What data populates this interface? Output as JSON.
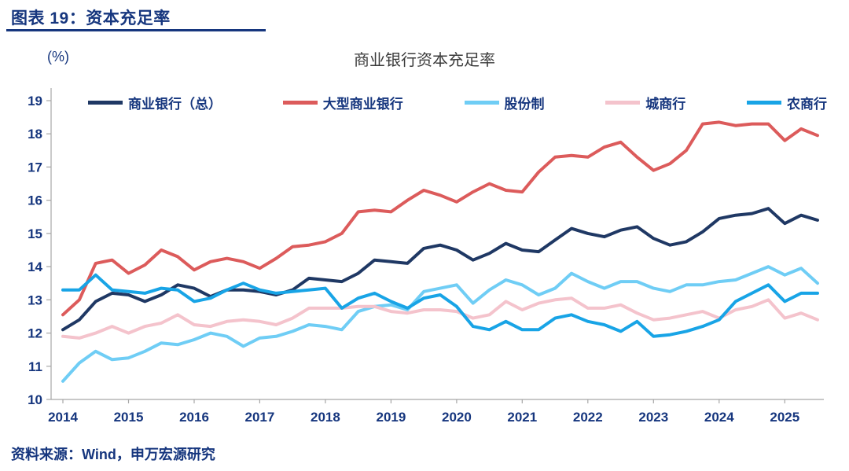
{
  "figure": {
    "header": "图表 19：资本充足率",
    "source": "资料来源：Wind，申万宏源研究"
  },
  "colors": {
    "accent": "#16367E",
    "axis": "#A6A6A6",
    "title_text": "#3A3A3A"
  },
  "chart_data": {
    "type": "line",
    "title": "商业银行资本充足率",
    "ylabel": "(%)",
    "xlabel": "",
    "ylim": [
      10,
      19
    ],
    "grid": false,
    "legend_position": "top",
    "y_ticks": [
      10,
      11,
      12,
      13,
      14,
      15,
      16,
      17,
      18,
      19
    ],
    "x_tick_labels": [
      "2014",
      "2015",
      "2016",
      "2017",
      "2018",
      "2019",
      "2020",
      "2021",
      "2022",
      "2023",
      "2024",
      "2025"
    ],
    "x_tick_every": 4,
    "x_note": "quarterly points from 2014Q1 to 2025Q3",
    "series": [
      {
        "name": "商业银行（总）",
        "color": "#1F3864",
        "values": [
          12.1,
          12.4,
          12.95,
          13.2,
          13.15,
          12.95,
          13.15,
          13.45,
          13.35,
          13.1,
          13.3,
          13.3,
          13.25,
          13.15,
          13.3,
          13.65,
          13.6,
          13.55,
          13.8,
          14.2,
          14.15,
          14.1,
          14.55,
          14.65,
          14.5,
          14.2,
          14.4,
          14.7,
          14.5,
          14.45,
          14.8,
          15.15,
          15.0,
          14.9,
          15.1,
          15.2,
          14.85,
          14.65,
          14.75,
          15.05,
          15.45,
          15.55,
          15.6,
          15.75,
          15.3,
          15.55,
          15.4
        ]
      },
      {
        "name": "大型商业银行",
        "color": "#DC5B5B",
        "values": [
          12.55,
          13.0,
          14.1,
          14.2,
          13.8,
          14.05,
          14.5,
          14.3,
          13.9,
          14.15,
          14.25,
          14.15,
          13.95,
          14.25,
          14.6,
          14.65,
          14.75,
          15.0,
          15.65,
          15.7,
          15.65,
          16.0,
          16.3,
          16.15,
          15.95,
          16.25,
          16.5,
          16.3,
          16.25,
          16.85,
          17.3,
          17.35,
          17.3,
          17.6,
          17.75,
          17.3,
          16.9,
          17.1,
          17.5,
          18.3,
          18.35,
          18.25,
          18.3,
          18.3,
          17.8,
          18.15,
          17.95
        ]
      },
      {
        "name": "股份制",
        "color": "#6FCDF5",
        "values": [
          10.55,
          11.1,
          11.45,
          11.2,
          11.25,
          11.45,
          11.7,
          11.65,
          11.8,
          12.0,
          11.9,
          11.6,
          11.85,
          11.9,
          12.05,
          12.25,
          12.2,
          12.1,
          12.65,
          12.8,
          12.85,
          12.7,
          13.25,
          13.35,
          13.45,
          12.9,
          13.3,
          13.6,
          13.45,
          13.15,
          13.35,
          13.8,
          13.55,
          13.35,
          13.55,
          13.55,
          13.35,
          13.25,
          13.45,
          13.45,
          13.55,
          13.6,
          13.8,
          14.0,
          13.75,
          13.95,
          13.5
        ]
      },
      {
        "name": "城商行",
        "color": "#F4C3CC",
        "values": [
          11.9,
          11.85,
          12.0,
          12.2,
          12.0,
          12.2,
          12.3,
          12.55,
          12.25,
          12.2,
          12.35,
          12.4,
          12.35,
          12.25,
          12.45,
          12.75,
          12.75,
          12.75,
          12.8,
          12.8,
          12.65,
          12.6,
          12.7,
          12.7,
          12.65,
          12.45,
          12.55,
          12.95,
          12.7,
          12.9,
          13.0,
          13.05,
          12.75,
          12.75,
          12.85,
          12.6,
          12.4,
          12.45,
          12.55,
          12.65,
          12.45,
          12.7,
          12.8,
          13.0,
          12.45,
          12.6,
          12.4
        ]
      },
      {
        "name": "农商行",
        "color": "#18A4E6",
        "values": [
          13.3,
          13.3,
          13.75,
          13.3,
          13.25,
          13.2,
          13.35,
          13.3,
          12.95,
          13.05,
          13.3,
          13.5,
          13.3,
          13.2,
          13.25,
          13.3,
          13.35,
          12.75,
          13.05,
          13.2,
          12.95,
          12.75,
          13.05,
          13.15,
          12.8,
          12.2,
          12.1,
          12.35,
          12.1,
          12.1,
          12.45,
          12.55,
          12.35,
          12.25,
          12.05,
          12.35,
          11.9,
          11.95,
          12.05,
          12.2,
          12.4,
          12.95,
          13.2,
          13.45,
          12.95,
          13.2,
          13.2
        ]
      }
    ]
  }
}
